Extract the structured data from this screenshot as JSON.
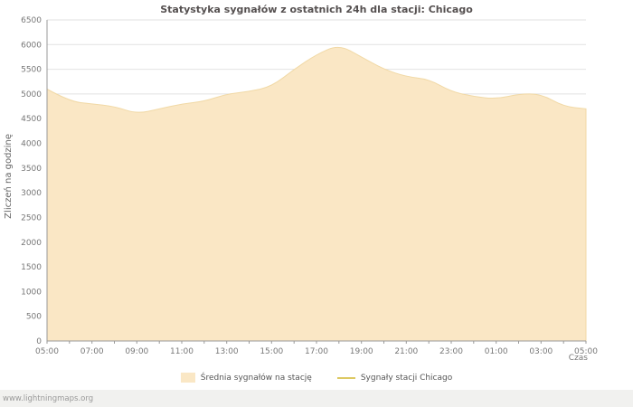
{
  "title": "Statystyka sygnałów z ostatnich 24h dla stacji: Chicago",
  "ylabel": "Zliczeń na godzinę",
  "xlabel": "Czas",
  "watermark": "www.lightningmaps.org",
  "colors": {
    "area_fill": "#fae7c5",
    "area_stroke": "#f1d9a6",
    "station_line": "#ddc963",
    "grid": "#e2e2e2",
    "axis": "#999999",
    "tick_text": "#777777"
  },
  "chart_data": {
    "type": "area",
    "title": "Statystyka sygnałów z ostatnich 24h dla stacji: Chicago",
    "xlabel": "Czas",
    "ylabel": "Zliczeń na godzinę",
    "ylim": [
      0,
      6500
    ],
    "y_tick_step": 500,
    "grid": "horizontal",
    "legend_position": "bottom",
    "x": [
      "05:00",
      "06:00",
      "07:00",
      "08:00",
      "09:00",
      "10:00",
      "11:00",
      "12:00",
      "13:00",
      "14:00",
      "15:00",
      "16:00",
      "17:00",
      "18:00",
      "19:00",
      "20:00",
      "21:00",
      "22:00",
      "23:00",
      "00:00",
      "01:00",
      "02:00",
      "03:00",
      "04:00",
      "05:00"
    ],
    "x_tick_labels": [
      "05:00",
      "07:00",
      "09:00",
      "11:00",
      "13:00",
      "15:00",
      "17:00",
      "19:00",
      "21:00",
      "23:00",
      "01:00",
      "03:00",
      "05:00"
    ],
    "series": [
      {
        "name": "Średnia sygnałów na stację",
        "type": "area",
        "color": "#fae7c5",
        "stroke": "#f1d9a6",
        "values": [
          5100,
          4850,
          4800,
          4750,
          4600,
          4700,
          4800,
          4850,
          5000,
          5050,
          5150,
          5500,
          5800,
          6000,
          5750,
          5500,
          5350,
          5300,
          5050,
          4950,
          4900,
          5000,
          5000,
          4750,
          4700
        ]
      },
      {
        "name": "Sygnały stacji Chicago",
        "type": "line",
        "color": "#ddc963",
        "values": []
      }
    ]
  }
}
